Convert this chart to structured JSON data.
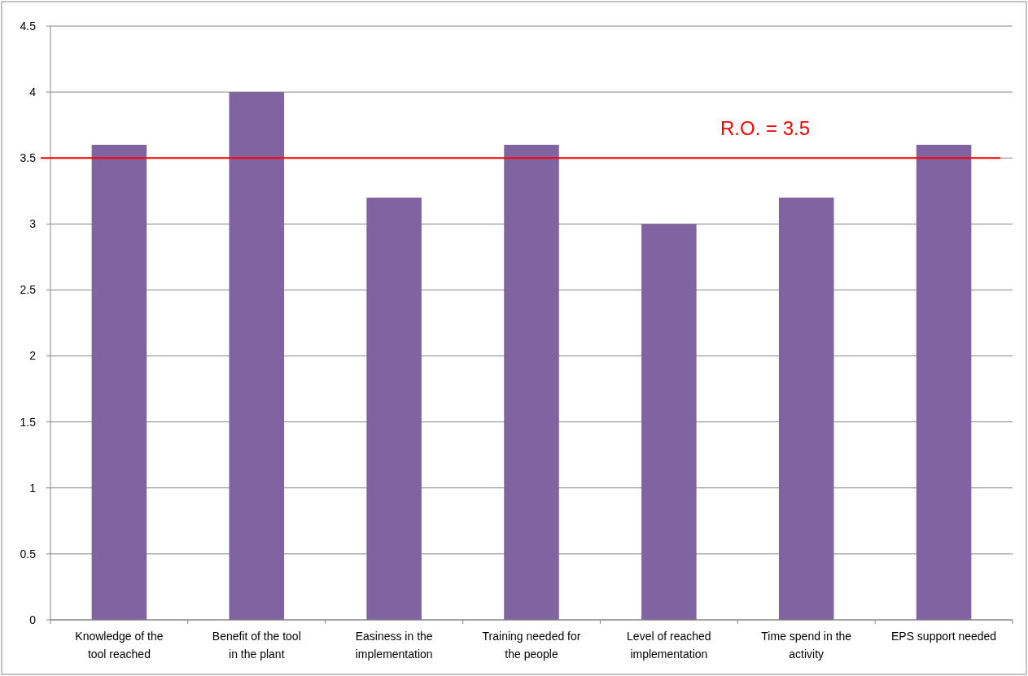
{
  "chart_data": {
    "type": "bar",
    "categories": [
      "Knowledge of the tool reached",
      "Benefit of the tool in the plant",
      "Easiness in the implementation",
      "Training needed for the people",
      "Level of reached implementation",
      "Time spend in the activity",
      "EPS support needed"
    ],
    "values": [
      3.6,
      4,
      3.2,
      3.6,
      3,
      3.2,
      3.6
    ],
    "color": "#8064a2",
    "ylim": [
      0,
      4.5
    ],
    "yticks": [
      0,
      0.5,
      1,
      1.5,
      2,
      2.5,
      3,
      3.5,
      4,
      4.5
    ],
    "grid": "y",
    "ref_lines": [
      {
        "axis": "y",
        "value": 3.5,
        "label": "R.O. = 3.5",
        "color": "#ff0000"
      }
    ]
  }
}
